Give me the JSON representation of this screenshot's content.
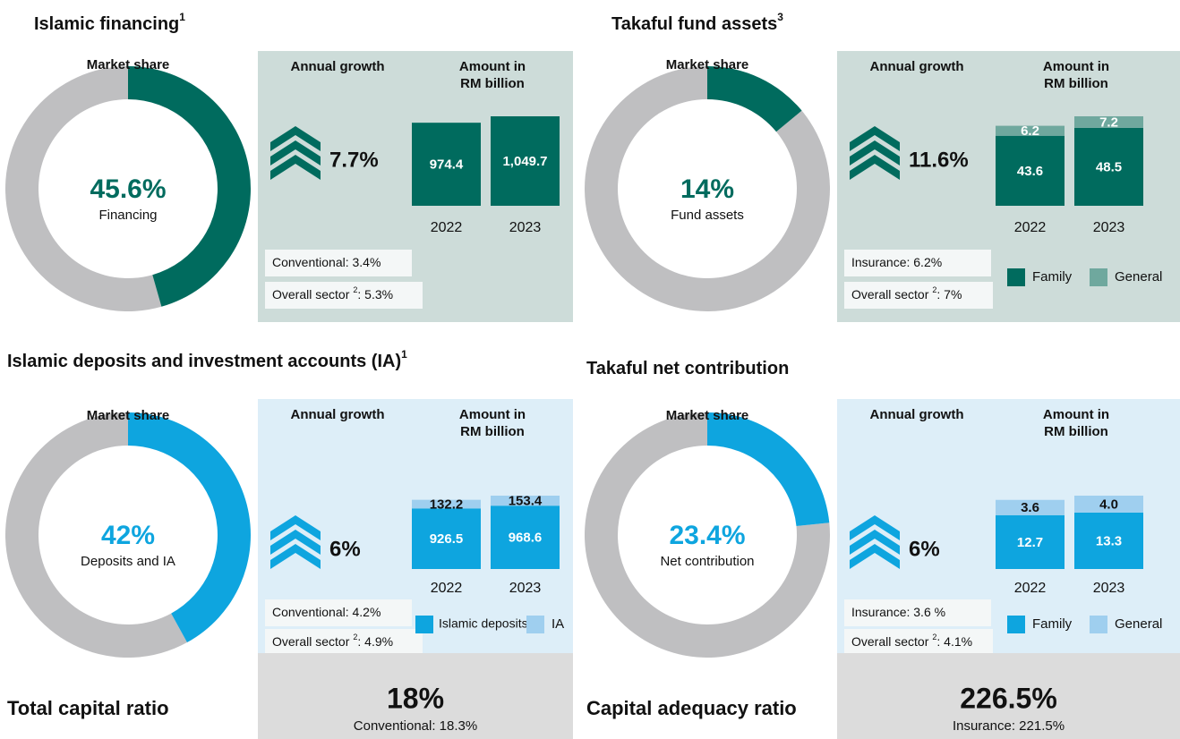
{
  "chart_data": [
    {
      "type": "donut_bar",
      "title": "Islamic financing",
      "title_sup": "1",
      "share_title": "Market share",
      "value": 45.6,
      "value_label": "45.6%",
      "caption": "Financing",
      "color": "#006b5e",
      "rest_color": "#bfbfc1",
      "bg": "#cddcd9",
      "growth_title": "Annual growth",
      "growth": 7.7,
      "growth_label": "7.7%",
      "amount_title": [
        "Amount in",
        "RM billion"
      ],
      "categories": [
        "2022",
        "2023"
      ],
      "series": [
        {
          "color": "#006b5e",
          "label_color": "#ffffff",
          "values": [
            974.4,
            1049.7
          ],
          "value_labels": [
            "974.4",
            "1,049.7"
          ]
        }
      ],
      "notes": [
        {
          "text": "Conventional: 3.4%"
        },
        {
          "text": "Overall sector",
          "sup": "2",
          "rest": ": 5.3%"
        }
      ]
    },
    {
      "type": "donut_bar",
      "title": "Takaful fund assets",
      "title_sup": "3",
      "share_title": "Market share",
      "value": 14,
      "value_label": "14%",
      "caption": "Fund assets",
      "color": "#006b5e",
      "rest_color": "#bfbfc1",
      "bg": "#cddcd9",
      "growth_title": "Annual growth",
      "growth": 11.6,
      "growth_label": "11.6%",
      "amount_title": [
        "Amount in",
        "RM billion"
      ],
      "categories": [
        "2022",
        "2023"
      ],
      "series": [
        {
          "name": "Family",
          "color": "#006b5e",
          "label_color": "#ffffff",
          "values": [
            43.6,
            48.5
          ]
        },
        {
          "name": "General",
          "color": "#6fa89e",
          "label_color": "#ffffff",
          "values": [
            6.2,
            7.2
          ]
        }
      ],
      "notes": [
        {
          "text": "Insurance: 6.2%"
        },
        {
          "text": "Overall sector",
          "sup": "2",
          "rest": ":  7%"
        }
      ]
    },
    {
      "type": "donut_bar",
      "title": "Islamic deposits and investment accounts (IA)",
      "title_sup": "1",
      "share_title": "Market share",
      "value": 42,
      "value_label": "42%",
      "caption": "Deposits and IA",
      "color": "#0ea5df",
      "rest_color": "#bfbfc1",
      "bg": "#ddeef8",
      "growth_title": "Annual growth",
      "growth": 6,
      "growth_label": "6%",
      "amount_title": [
        "Amount in",
        "RM billion"
      ],
      "categories": [
        "2022",
        "2023"
      ],
      "series": [
        {
          "name": "Islamic deposits",
          "color": "#0ea5df",
          "label_color": "#ffffff",
          "values": [
            926.5,
            968.6
          ]
        },
        {
          "name": "IA",
          "color": "#9fcfef",
          "label_color": "#111111",
          "values": [
            132.2,
            153.4
          ]
        }
      ],
      "notes": [
        {
          "text": "Conventional: 4.2%"
        },
        {
          "text": "Overall sector",
          "sup": "2",
          "rest": ": 4.9%"
        }
      ]
    },
    {
      "type": "donut_bar",
      "title": "Takaful net contribution",
      "share_title": "Market share",
      "value": 23.4,
      "value_label": "23.4%",
      "caption": "Net contribution",
      "color": "#0ea5df",
      "rest_color": "#bfbfc1",
      "bg": "#ddeef8",
      "growth_title": "Annual growth",
      "growth": 6,
      "growth_label": "6%",
      "amount_title": [
        "Amount in",
        "RM billion"
      ],
      "categories": [
        "2022",
        "2023"
      ],
      "series": [
        {
          "name": "Family",
          "color": "#0ea5df",
          "label_color": "#ffffff",
          "values": [
            12.7,
            13.3
          ]
        },
        {
          "name": "General",
          "color": "#9fcfef",
          "label_color": "#111111",
          "values": [
            3.6,
            4.0
          ],
          "value_labels": [
            "3.6",
            "4.0"
          ]
        }
      ],
      "notes": [
        {
          "text": "Insurance: 3.6 %"
        },
        {
          "text": "Overall sector",
          "sup": "2",
          "rest": ":  4.1%"
        }
      ]
    }
  ],
  "ratios": [
    {
      "label": "Total capital ratio",
      "value": 18,
      "value_label": "18%",
      "note": "Conventional: 18.3%"
    },
    {
      "label": "Capital adequacy ratio",
      "value": 226.5,
      "value_label": "226.5%",
      "note": "Insurance: 221.5%"
    }
  ]
}
